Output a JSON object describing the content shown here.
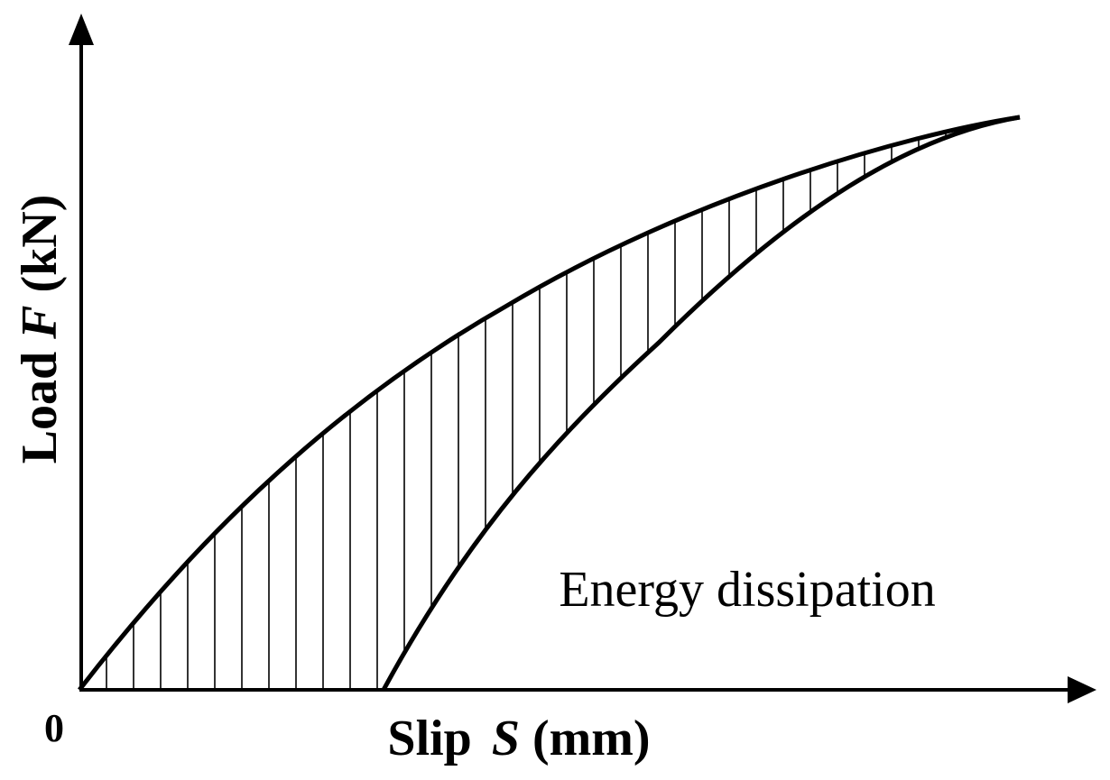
{
  "diagram": {
    "origin_label": "0",
    "x_axis": {
      "label_prefix": "Slip",
      "label_var": "S",
      "label_unit": "(mm)"
    },
    "y_axis": {
      "label_prefix": "Load",
      "label_var": "F",
      "label_unit": "(kN)"
    },
    "annotation": "Energy dissipation",
    "colors": {
      "ink": "#000000",
      "background": "#ffffff"
    }
  }
}
